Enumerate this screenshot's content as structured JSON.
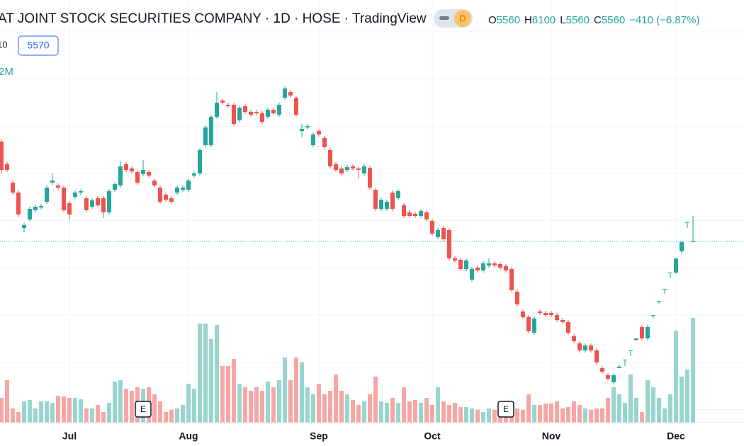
{
  "chart_data": {
    "type": "candlestick",
    "title": "AT JOINT STOCK SECURITIES COMPANY · 1D · HOSE · TradingView",
    "interval_badge": "D",
    "ohlc_labels": [
      "O",
      "H",
      "L",
      "C"
    ],
    "ohlc_values": [
      5560,
      6100,
      5560,
      5560
    ],
    "change": "−410 (−6.87%)",
    "indicator_row": [
      "10",
      "5570"
    ],
    "volume_legend": "2M",
    "categories": [
      null,
      null,
      null,
      null,
      null,
      null,
      null,
      null,
      null,
      null,
      null,
      null,
      "Jul",
      null,
      null,
      null,
      null,
      null,
      null,
      null,
      null,
      null,
      null,
      null,
      null,
      null,
      null,
      null,
      null,
      null,
      null,
      null,
      null,
      "Aug",
      null,
      null,
      null,
      null,
      null,
      null,
      null,
      null,
      null,
      null,
      null,
      null,
      null,
      null,
      null,
      null,
      null,
      null,
      null,
      null,
      null,
      null,
      "Sep",
      null,
      null,
      null,
      null,
      null,
      null,
      null,
      null,
      null,
      null,
      null,
      null,
      null,
      null,
      null,
      null,
      null,
      null,
      null,
      "Oct",
      null,
      null,
      null,
      null,
      null,
      null,
      null,
      null,
      null,
      null,
      null,
      null,
      null,
      null,
      null,
      null,
      null,
      null,
      null,
      null,
      "Nov",
      null,
      null,
      null,
      null,
      null,
      null,
      null,
      null,
      null,
      null,
      null,
      null,
      null,
      null,
      null,
      null,
      null,
      null,
      null,
      null,
      null,
      "Dec",
      null,
      null,
      null
    ],
    "open": [
      7675,
      7195,
      6805,
      6595,
      5845,
      6025,
      6220,
      6280,
      6400,
      6805,
      6745,
      6700,
      6370,
      6505,
      6595,
      6475,
      6295,
      6475,
      6475,
      6175,
      6655,
      6745,
      7195,
      7105,
      7030,
      6985,
      7030,
      6850,
      6700,
      6550,
      6475,
      6595,
      6655,
      6655,
      6955,
      7000,
      7600,
      7600,
      8200,
      8545,
      8455,
      8455,
      8125,
      8425,
      8305,
      8305,
      8275,
      8200,
      8350,
      8245,
      8605,
      8725,
      8605,
      7900,
      7975,
      7600,
      7900,
      7750,
      7495,
      7195,
      7105,
      7075,
      7150,
      7105,
      7000,
      7120,
      6655,
      6250,
      6250,
      6595,
      6475,
      6325,
      6175,
      6145,
      6100,
      6175,
      5995,
      5650,
      5845,
      5800,
      5200,
      5170,
      4975,
      4750,
      5005,
      4945,
      5050,
      5095,
      5080,
      5035,
      4975,
      4495,
      4075,
      3955,
      3625,
      4075,
      4045,
      4045,
      4000,
      3895,
      3850,
      3550,
      3400,
      3250,
      3355,
      3250,
      2875,
      2725,
      2575,
      2875,
      3055,
      3250,
      3475,
      3745,
      3505,
      4000,
      4300,
      4555,
      4900,
      4900,
      5350,
      5970,
      5560
    ],
    "high": [
      7720,
      7240,
      6850,
      6640,
      5950,
      6295,
      6340,
      6355,
      6745,
      7000,
      6790,
      6745,
      6415,
      6640,
      6670,
      6520,
      6475,
      6520,
      6520,
      6670,
      6820,
      7270,
      7240,
      7150,
      7075,
      7285,
      7075,
      6895,
      6745,
      6595,
      6520,
      6745,
      6745,
      6895,
      7045,
      7540,
      8020,
      8245,
      8725,
      8590,
      8500,
      8500,
      8440,
      8470,
      8350,
      8350,
      8320,
      8395,
      8395,
      8500,
      8845,
      8770,
      8650,
      8050,
      8050,
      7870,
      7945,
      7795,
      7540,
      7240,
      7150,
      7180,
      7195,
      7150,
      7195,
      7165,
      6700,
      6490,
      6445,
      6640,
      6670,
      6370,
      6220,
      6190,
      6250,
      6220,
      6040,
      5845,
      5890,
      5845,
      5245,
      5215,
      5200,
      5020,
      5050,
      5140,
      5200,
      5140,
      5125,
      5080,
      5020,
      4540,
      4120,
      4000,
      3970,
      4120,
      4090,
      4090,
      4045,
      3940,
      3895,
      3595,
      3445,
      3400,
      3400,
      3295,
      2920,
      2770,
      2770,
      2950,
      3055,
      3250,
      3505,
      3790,
      3790,
      4000,
      4300,
      4555,
      4900,
      5200,
      5560,
      5970,
      6100
    ],
    "low": [
      7000,
      7030,
      6550,
      6085,
      5755,
      5980,
      6175,
      6235,
      6355,
      6760,
      6655,
      6175,
      6010,
      6460,
      6550,
      6175,
      6250,
      6280,
      6055,
      6130,
      6610,
      6700,
      7030,
      7000,
      6760,
      6940,
      6910,
      6700,
      6355,
      6400,
      6355,
      6550,
      6610,
      6610,
      6910,
      6955,
      7555,
      7555,
      8155,
      8455,
      8380,
      8005,
      8080,
      8260,
      8200,
      8230,
      8050,
      8155,
      8230,
      8200,
      8560,
      8605,
      8200,
      7765,
      7930,
      7555,
      7780,
      7510,
      7105,
      7030,
      6955,
      7030,
      7060,
      6895,
      6955,
      6655,
      6205,
      6205,
      6205,
      6205,
      6430,
      6055,
      6055,
      6055,
      6055,
      5980,
      5680,
      5605,
      5560,
      5155,
      5110,
      4930,
      4930,
      4705,
      4900,
      4900,
      5005,
      5005,
      4960,
      4900,
      4480,
      4180,
      3910,
      3610,
      3580,
      4000,
      3955,
      3955,
      3850,
      3805,
      3580,
      3400,
      3205,
      3205,
      3205,
      2950,
      2755,
      2605,
      2530,
      2875,
      2920,
      3130,
      3445,
      3460,
      3460,
      3930,
      4230,
      4450,
      4780,
      4870,
      5300,
      5850,
      5560
    ],
    "close": [
      7075,
      7075,
      6595,
      6130,
      5905,
      6250,
      6295,
      6310,
      6700,
      6850,
      6700,
      6220,
      6130,
      6595,
      6625,
      6220,
      6430,
      6325,
      6175,
      6625,
      6775,
      7150,
      7075,
      7045,
      6805,
      7075,
      6955,
      6745,
      6400,
      6445,
      6400,
      6700,
      6700,
      6850,
      7000,
      7495,
      7975,
      8200,
      8500,
      8500,
      8425,
      8050,
      8395,
      8305,
      8245,
      8275,
      8095,
      8350,
      8275,
      8455,
      8800,
      8650,
      8245,
      7945,
      8005,
      7825,
      7825,
      7555,
      7150,
      7075,
      7000,
      7135,
      7105,
      7075,
      7150,
      6700,
      6250,
      6445,
      6400,
      6250,
      6625,
      6100,
      6100,
      6100,
      6205,
      6025,
      5725,
      5800,
      5605,
      5200,
      5155,
      4975,
      5155,
      4975,
      4945,
      5095,
      5095,
      5050,
      5005,
      4945,
      4525,
      4225,
      3955,
      3655,
      3925,
      4045,
      4000,
      4000,
      3895,
      3850,
      3625,
      3445,
      3250,
      3355,
      3250,
      2995,
      2800,
      2650,
      2725,
      2905,
      3055,
      3250,
      3505,
      3505,
      3745,
      4000,
      4300,
      4555,
      4900,
      5200,
      5545,
      5970,
      5560
    ],
    "volume": [
      350000,
      600000,
      200000,
      150000,
      300000,
      320000,
      200000,
      300000,
      300000,
      280000,
      380000,
      370000,
      350000,
      350000,
      330000,
      200000,
      200000,
      250000,
      150000,
      280000,
      580000,
      600000,
      480000,
      450000,
      500000,
      480000,
      500000,
      400000,
      300000,
      150000,
      180000,
      200000,
      250000,
      550000,
      480000,
      1400000,
      1400000,
      1180000,
      1380000,
      800000,
      800000,
      900000,
      550000,
      500000,
      450000,
      500000,
      450000,
      580000,
      500000,
      600000,
      920000,
      600000,
      920000,
      850000,
      500000,
      400000,
      550000,
      400000,
      450000,
      680000,
      450000,
      400000,
      320000,
      250000,
      300000,
      400000,
      650000,
      300000,
      280000,
      350000,
      280000,
      500000,
      300000,
      320000,
      280000,
      350000,
      250000,
      500000,
      300000,
      250000,
      280000,
      220000,
      220000,
      200000,
      180000,
      150000,
      200000,
      180000,
      200000,
      200000,
      180000,
      200000,
      180000,
      400000,
      250000,
      250000,
      270000,
      270000,
      300000,
      200000,
      220000,
      300000,
      250000,
      200000,
      180000,
      200000,
      200000,
      350000,
      500000,
      400000,
      280000,
      680000,
      350000,
      150000,
      600000,
      500000,
      350000,
      200000,
      400000,
      1300000,
      650000,
      750000,
      1480000
    ],
    "events": [
      {
        "category_index": 25,
        "label": "E"
      },
      {
        "category_index": 89,
        "label": "E"
      }
    ],
    "ylim": [
      1720,
      10675
    ],
    "yticks": [
      2000,
      3000,
      4000,
      5000,
      6000,
      7000,
      8000,
      9000,
      10000
    ],
    "vlim": [
      0,
      5970000
    ],
    "grid": true,
    "up_color": "#26a69a",
    "down_color": "#ef5350",
    "volume_up_color": "#98d5cf",
    "volume_down_color": "#f6a7a5"
  }
}
